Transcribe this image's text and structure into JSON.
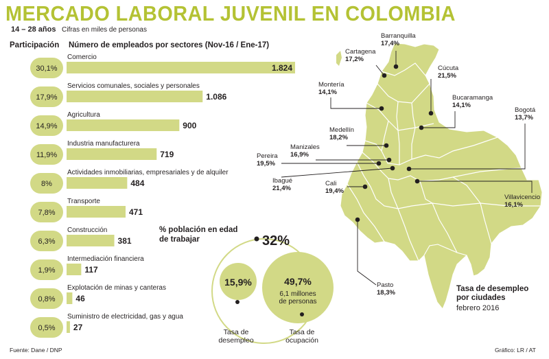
{
  "header": {
    "title": "MERCADO LABORAL JUVENIL EN COLOMBIA",
    "age_range": "14 – 28 años",
    "units": "Cifras en miles de personas",
    "col_participation": "Participación",
    "col_employees": "Número de empleados por sectores (Nov-16 / Ene-17)"
  },
  "colors": {
    "accent": "#b4c234",
    "bar": "#d2d986",
    "circle": "#d2d986",
    "map": "#d2d986",
    "map_stroke": "#ffffff",
    "text": "#231f20"
  },
  "chart_data": [
    {
      "type": "bar",
      "orientation": "horizontal",
      "categories": [
        "Comercio",
        "Servicios comunales, sociales y personales",
        "Agricultura",
        "Industria manufacturera",
        "Actividades inmobiliarias, empresariales y de alquiler",
        "Transporte",
        "Construcción",
        "Intermediación financiera",
        "Explotación de minas y canteras",
        "Suministro de electricidad, gas y agua"
      ],
      "values": [
        1824,
        1086,
        900,
        719,
        484,
        471,
        381,
        117,
        46,
        27
      ],
      "value_labels": [
        "1.824",
        "1.086",
        "900",
        "719",
        "484",
        "471",
        "381",
        "117",
        "46",
        "27"
      ],
      "participation": [
        "30,1%",
        "17,9%",
        "14,9%",
        "11,9%",
        "8%",
        "7,8%",
        "6,3%",
        "1,9%",
        "0,8%",
        "0,5%"
      ]
    },
    {
      "type": "map",
      "title": "Tasa de desempleo por ciudades",
      "subtitle": "febrero 2016",
      "cities": [
        {
          "name": "Barranquilla",
          "value": "17,4%"
        },
        {
          "name": "Cartagena",
          "value": "17,2%"
        },
        {
          "name": "Cúcuta",
          "value": "21,5%"
        },
        {
          "name": "Montería",
          "value": "14,1%"
        },
        {
          "name": "Bucaramanga",
          "value": "14,1%"
        },
        {
          "name": "Bogotá",
          "value": "13,7%"
        },
        {
          "name": "Medellín",
          "value": "18,2%"
        },
        {
          "name": "Manizales",
          "value": "16,9%"
        },
        {
          "name": "Pereira",
          "value": "19,5%"
        },
        {
          "name": "Ibagué",
          "value": "21,4%"
        },
        {
          "name": "Cali",
          "value": "19,4%"
        },
        {
          "name": "Villavicencio",
          "value": "16,1%"
        },
        {
          "name": "Pasto",
          "value": "18,3%"
        }
      ]
    },
    {
      "type": "bubble",
      "title": "% población en edad de trabajar",
      "total": "32%",
      "items": [
        {
          "value": "15,9%",
          "label": "Tasa de desempleo",
          "note": ""
        },
        {
          "value": "49,7%",
          "label": "Tasa de ocupación",
          "note": "6,1 millones de personas"
        }
      ]
    }
  ],
  "footer": {
    "source": "Fuente: Dane / DNP",
    "credit": "Gráfico: LR / AT"
  }
}
